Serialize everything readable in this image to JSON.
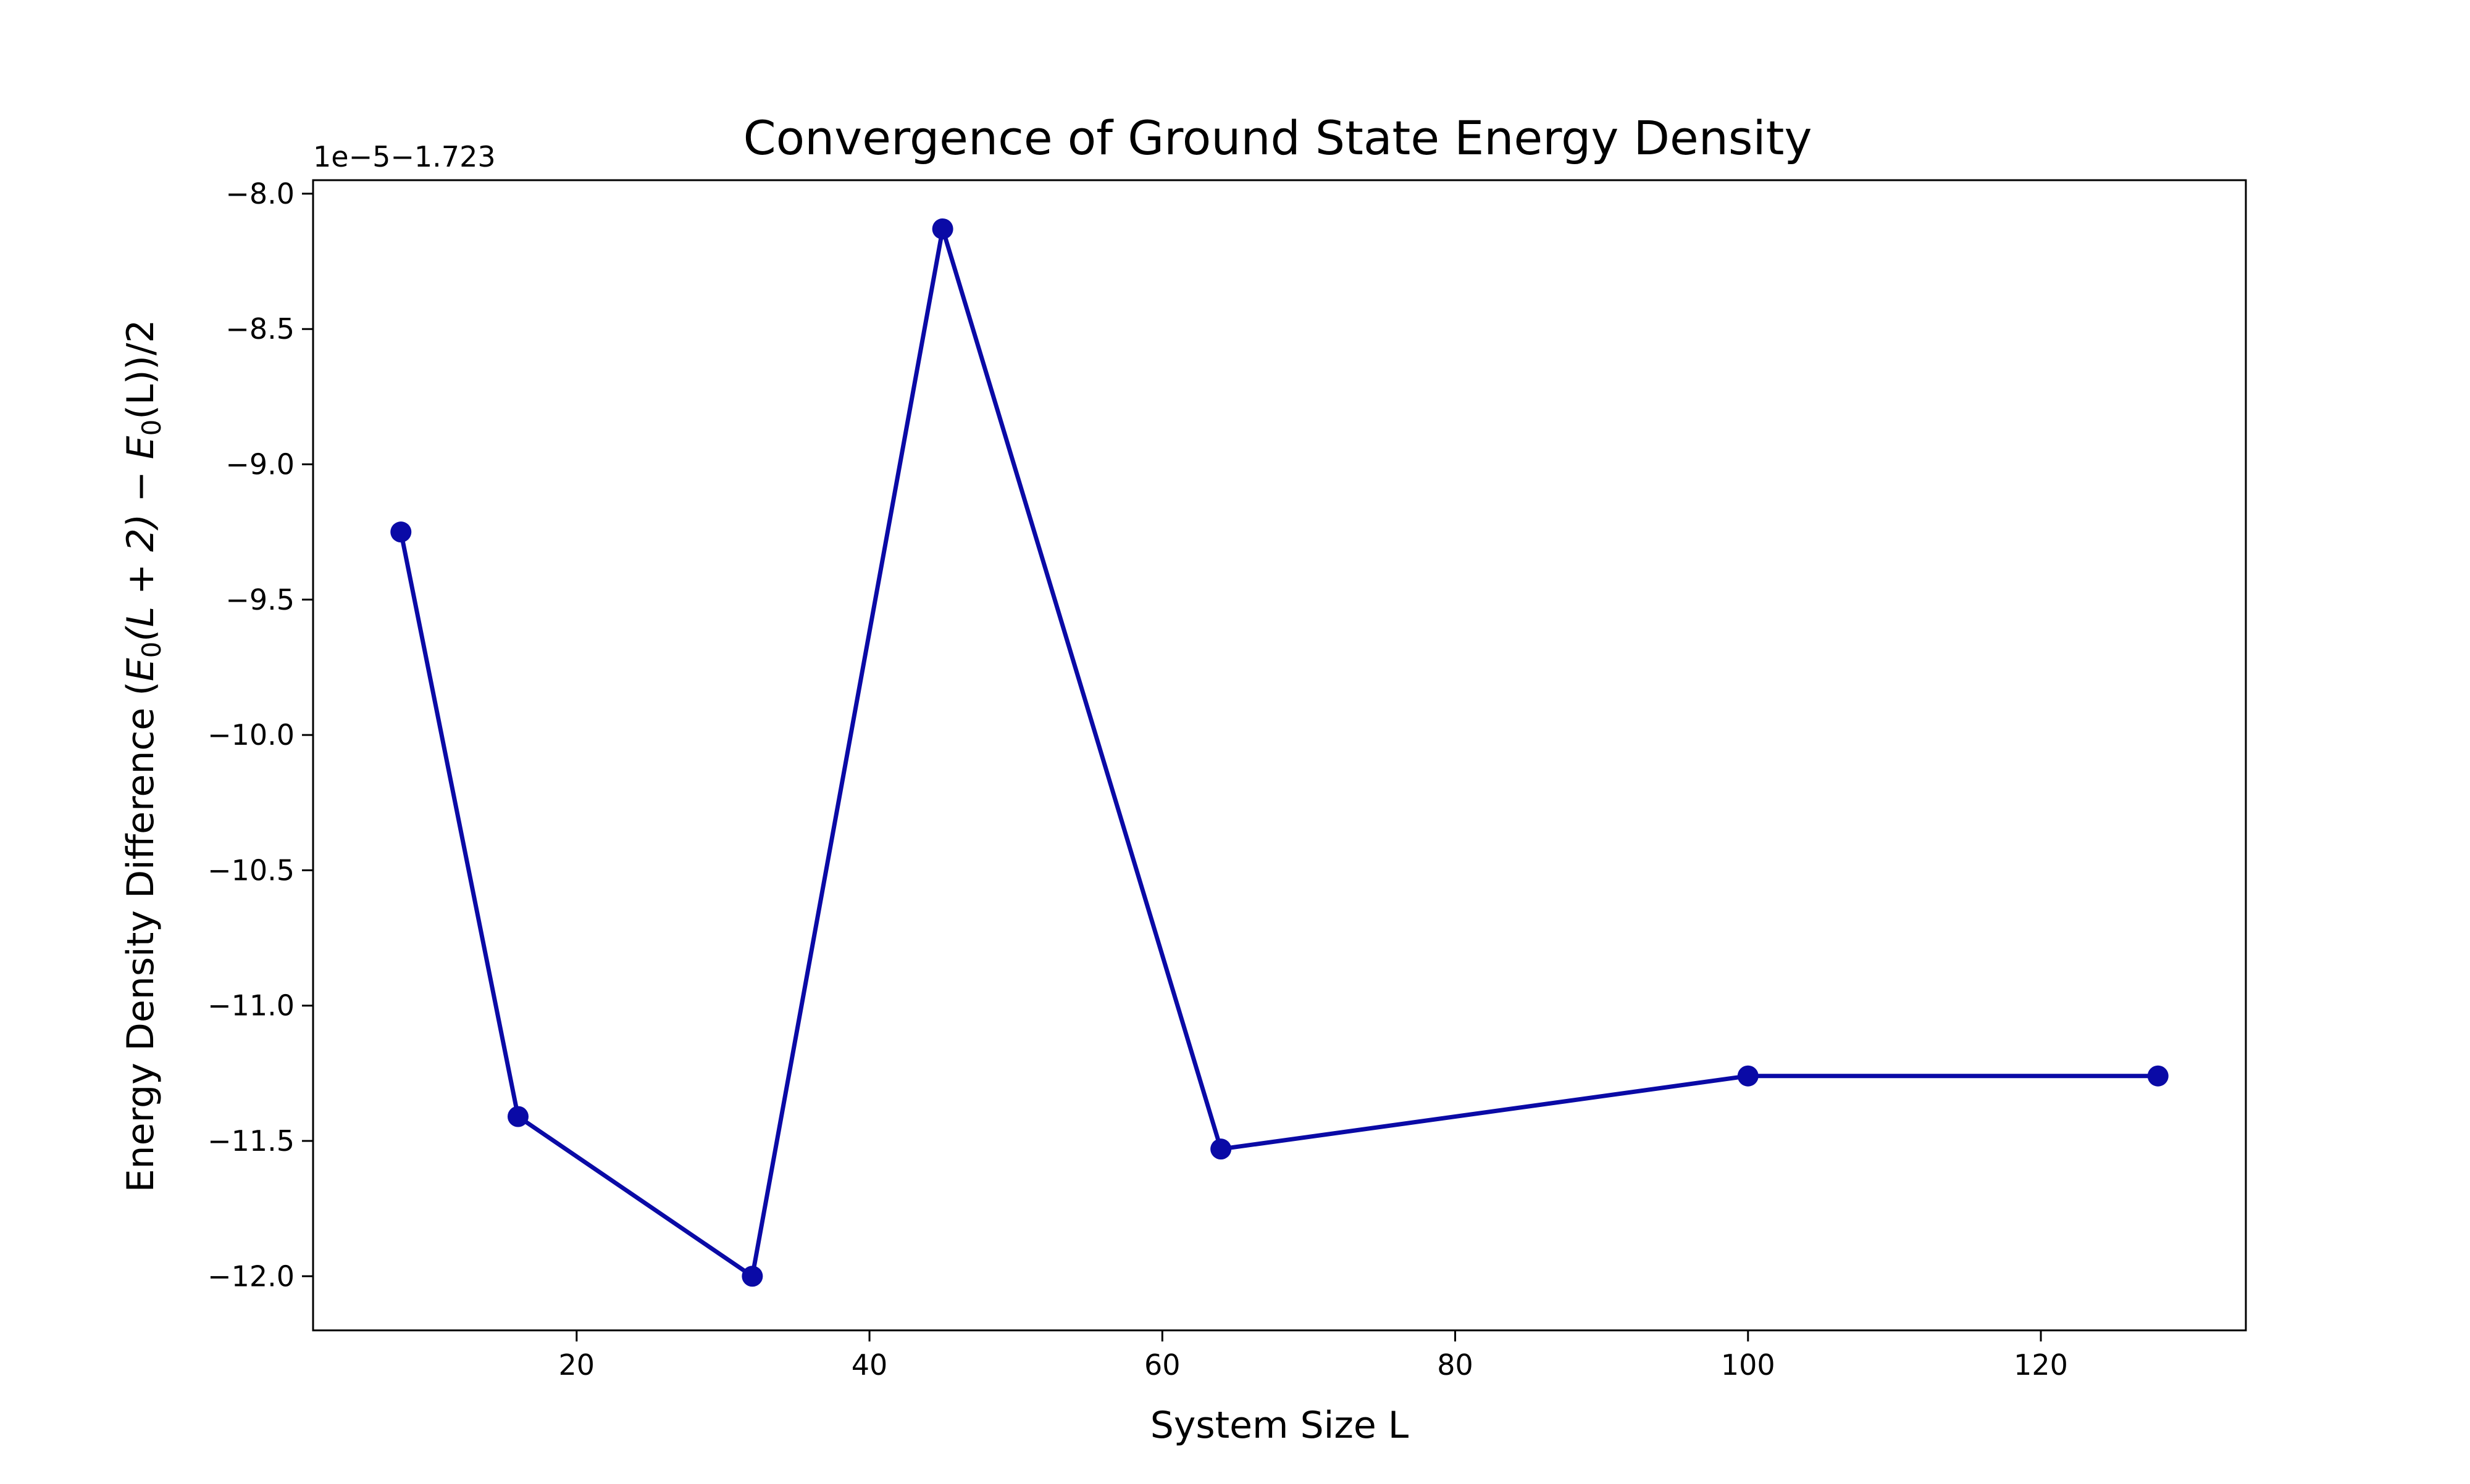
{
  "chart_data": {
    "type": "line",
    "title": "Convergence of Ground State Energy Density",
    "xlabel": "System Size L",
    "ylabel": {
      "prefix": "Energy Density Difference (",
      "e1": "E",
      "e1_sub": "0",
      "mid": "(L + 2) − ",
      "e2": "E",
      "e2_sub": "0",
      "suffix": "(L))/2"
    },
    "y_offset_label": "1e−5−1.723",
    "xlim": [
      2,
      134
    ],
    "ylim": [
      -12.2,
      -7.95
    ],
    "x_ticks": [
      20,
      40,
      60,
      80,
      100,
      120
    ],
    "x_tick_labels": [
      "20",
      "40",
      "60",
      "80",
      "100",
      "120"
    ],
    "y_ticks": [
      -8.0,
      -8.5,
      -9.0,
      -9.5,
      -10.0,
      -10.5,
      -11.0,
      -11.5,
      -12.0
    ],
    "y_tick_labels": [
      "−8.0",
      "−8.5",
      "−9.0",
      "−9.5",
      "−10.0",
      "−10.5",
      "−11.0",
      "−11.5",
      "−12.0"
    ],
    "grid": false,
    "series": [
      {
        "color": "#0a0aa6",
        "marker": "circle",
        "x": [
          8,
          16,
          32,
          45,
          64,
          100,
          128
        ],
        "y": [
          -9.25,
          -11.41,
          -12.0,
          -8.13,
          -11.53,
          -11.26,
          -11.26
        ]
      }
    ]
  }
}
